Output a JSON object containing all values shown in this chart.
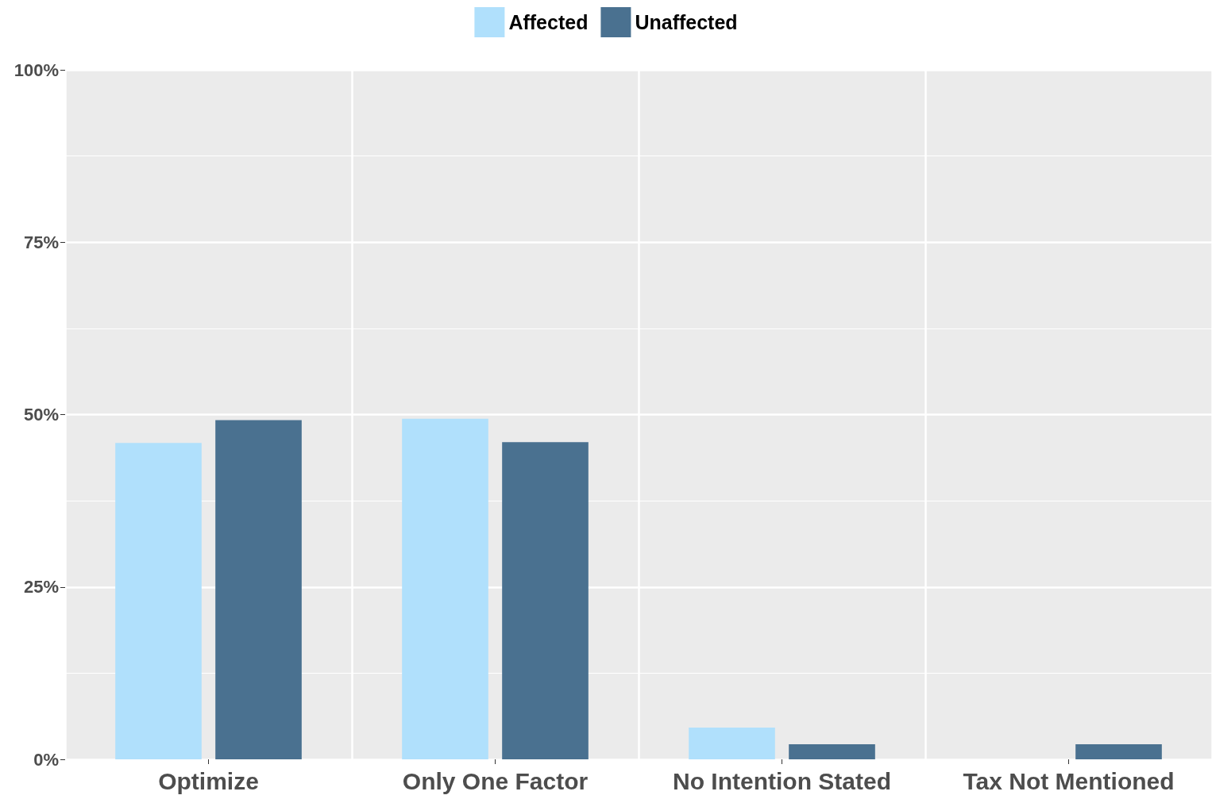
{
  "chart_data": {
    "type": "bar",
    "categories": [
      "Optimize",
      "Only One Factor",
      "No Intention Stated",
      "Tax Not Mentioned"
    ],
    "series": [
      {
        "name": "Affected",
        "color": "#b0e0fc",
        "values": [
          45.9,
          49.4,
          4.6,
          0
        ]
      },
      {
        "name": "Unaffected",
        "color": "#4a7190",
        "values": [
          49.2,
          46.0,
          2.2,
          2.2
        ]
      }
    ],
    "ylim": [
      0,
      100
    ],
    "yticks": [
      {
        "value": 0,
        "label": "0%"
      },
      {
        "value": 25,
        "label": "25%"
      },
      {
        "value": 50,
        "label": "50%"
      },
      {
        "value": 75,
        "label": "75%"
      },
      {
        "value": 100,
        "label": "100%"
      }
    ],
    "grid": true,
    "legend": "top"
  }
}
